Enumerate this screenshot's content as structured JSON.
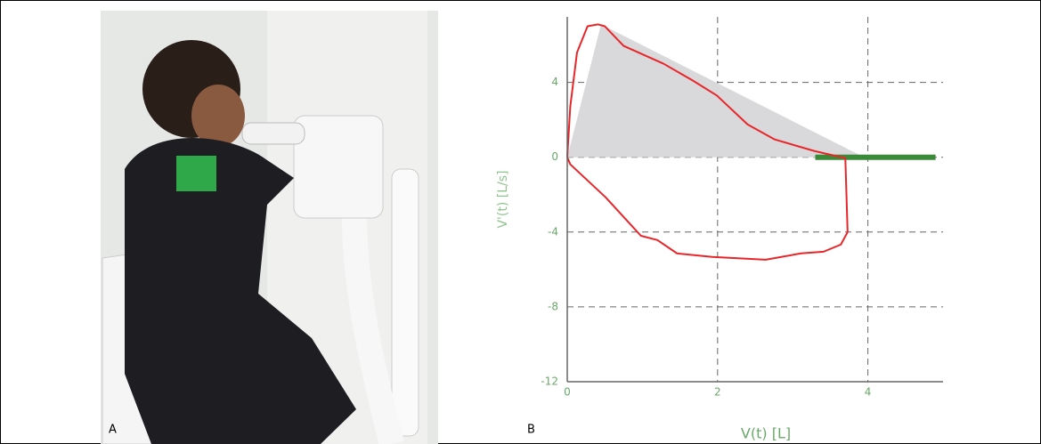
{
  "panels": {
    "a_label": "A",
    "b_label": "B"
  },
  "chart_data": {
    "type": "line",
    "xlabel": "V(t) [L]",
    "ylabel": "V'(t) [L/s]",
    "xlim": [
      0,
      5
    ],
    "ylim": [
      -12,
      7.5
    ],
    "xticks": [
      0,
      2,
      4
    ],
    "yticks": [
      -12,
      -8,
      -4,
      0,
      4
    ],
    "grid": true,
    "series": [
      {
        "color": "#d9d9db",
        "fill": true,
        "x": [
          0,
          0.45,
          3.95
        ],
        "y": [
          0,
          7.1,
          0
        ]
      },
      {
        "color": "#3a8a3a",
        "width": 6,
        "x": [
          3.3,
          4.9
        ],
        "y": [
          0,
          0
        ]
      },
      {
        "color": "#e8262a",
        "width": 2,
        "x": [
          0,
          0.04,
          0.13,
          0.27,
          0.41,
          0.5,
          0.75,
          1.28,
          1.67,
          1.99,
          2.4,
          2.76,
          3.29,
          3.7,
          3.73,
          3.64,
          3.41,
          3.11,
          2.64,
          1.93,
          1.46,
          1.2,
          0.98,
          0.51,
          0.04,
          0
        ],
        "y": [
          0,
          2.7,
          5.6,
          7.0,
          7.1,
          7.0,
          5.95,
          5.0,
          4.1,
          3.3,
          1.75,
          0.95,
          0.33,
          -0.05,
          -4,
          -4.67,
          -5.05,
          -5.14,
          -5.48,
          -5.33,
          -5.14,
          -4.43,
          -4.2,
          -2.14,
          -0.38,
          0
        ]
      }
    ]
  }
}
